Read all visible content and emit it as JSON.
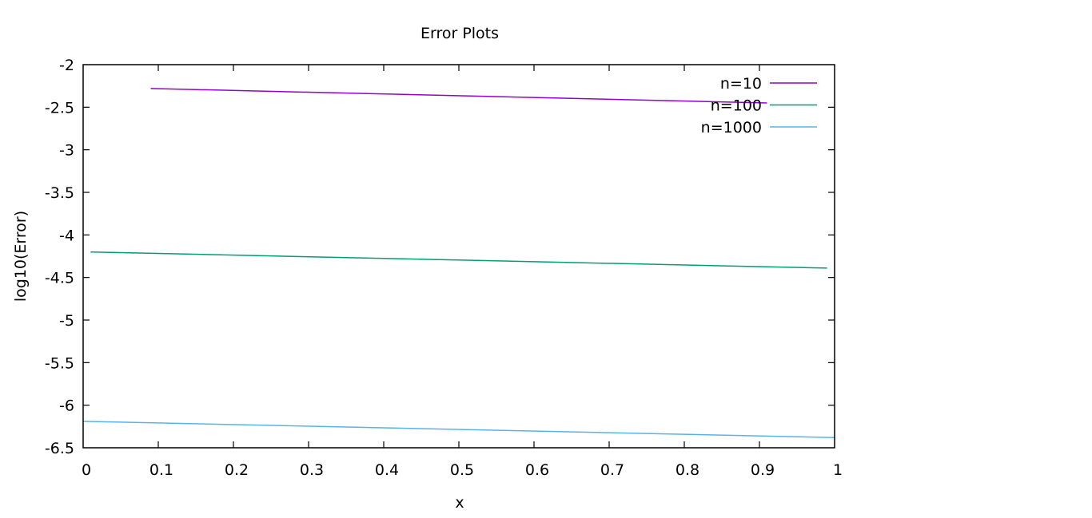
{
  "chart_data": {
    "type": "line",
    "title": "Error Plots",
    "xlabel": "x",
    "ylabel": "log10(Error)",
    "xlim": [
      0,
      1
    ],
    "ylim": [
      -6.5,
      -2
    ],
    "x_ticks": [
      "0",
      "0.1",
      "0.2",
      "0.3",
      "0.4",
      "0.5",
      "0.6",
      "0.7",
      "0.8",
      "0.9",
      "1"
    ],
    "y_ticks": [
      "-2",
      "-2.5",
      "-3",
      "-3.5",
      "-4",
      "-4.5",
      "-5",
      "-5.5",
      "-6",
      "-6.5"
    ],
    "grid": false,
    "legend_position": "top-right",
    "series": [
      {
        "name": "n=10",
        "color": "#9400d3",
        "x": [
          0.09,
          0.91
        ],
        "y": [
          -2.28,
          -2.45
        ]
      },
      {
        "name": "n=100",
        "color": "#009e73",
        "x": [
          0.01,
          0.99
        ],
        "y": [
          -4.2,
          -4.39
        ]
      },
      {
        "name": "n=1000",
        "color": "#56b4e9",
        "x": [
          0.0,
          1.0
        ],
        "y": [
          -6.19,
          -6.38
        ]
      }
    ]
  }
}
